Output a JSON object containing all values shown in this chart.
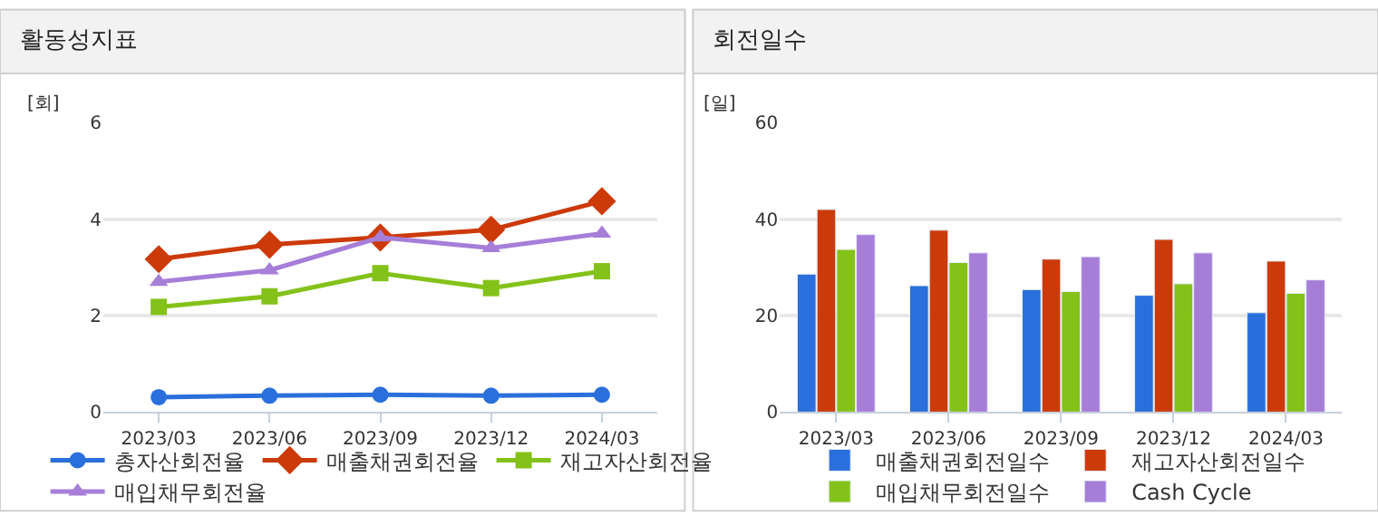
{
  "chart_data": [
    {
      "type": "line",
      "title": "활동성지표",
      "ylabel": "[회]",
      "categories": [
        "2023/03",
        "2023/06",
        "2023/09",
        "2023/12",
        "2024/03"
      ],
      "ylim": [
        0,
        6
      ],
      "yticks": [
        0,
        2,
        4,
        6
      ],
      "grid": "y",
      "legend": "bottom",
      "line_style": "solid",
      "series": [
        {
          "name": "총자산회전율",
          "color": "#2a6fdb",
          "marker": "circle",
          "values": [
            0.31,
            0.34,
            0.36,
            0.34,
            0.36
          ]
        },
        {
          "name": "매출채권회전율",
          "color": "#cc3a0a",
          "marker": "diamond",
          "values": [
            3.17,
            3.47,
            3.62,
            3.78,
            4.37
          ]
        },
        {
          "name": "재고자산회전율",
          "color": "#84c21a",
          "marker": "square",
          "values": [
            2.18,
            2.4,
            2.88,
            2.57,
            2.92
          ]
        },
        {
          "name": "매입채무회전율",
          "color": "#a67ed8",
          "marker": "triangle",
          "values": [
            2.7,
            2.94,
            3.62,
            3.4,
            3.7
          ]
        }
      ]
    },
    {
      "type": "bar",
      "title": "회전일수",
      "ylabel": "[일]",
      "categories": [
        "2023/03",
        "2023/06",
        "2023/09",
        "2023/12",
        "2024/03"
      ],
      "ylim": [
        0,
        60
      ],
      "yticks": [
        0,
        20,
        40,
        60
      ],
      "grid": "y",
      "legend": "bottom",
      "series": [
        {
          "name": "매출채권회전일수",
          "color": "#2a6fdb",
          "values": [
            28.6,
            26.2,
            25.4,
            24.2,
            20.6
          ]
        },
        {
          "name": "재고자산회전일수",
          "color": "#cc3a0a",
          "values": [
            42.0,
            37.7,
            31.7,
            35.8,
            31.3
          ]
        },
        {
          "name": "매입채무회전일수",
          "color": "#84c21a",
          "values": [
            33.7,
            31.0,
            25.0,
            26.6,
            24.6
          ]
        },
        {
          "name": "Cash Cycle",
          "color": "#a67ed8",
          "values": [
            36.8,
            33.0,
            32.2,
            33.0,
            27.4
          ]
        }
      ]
    }
  ]
}
